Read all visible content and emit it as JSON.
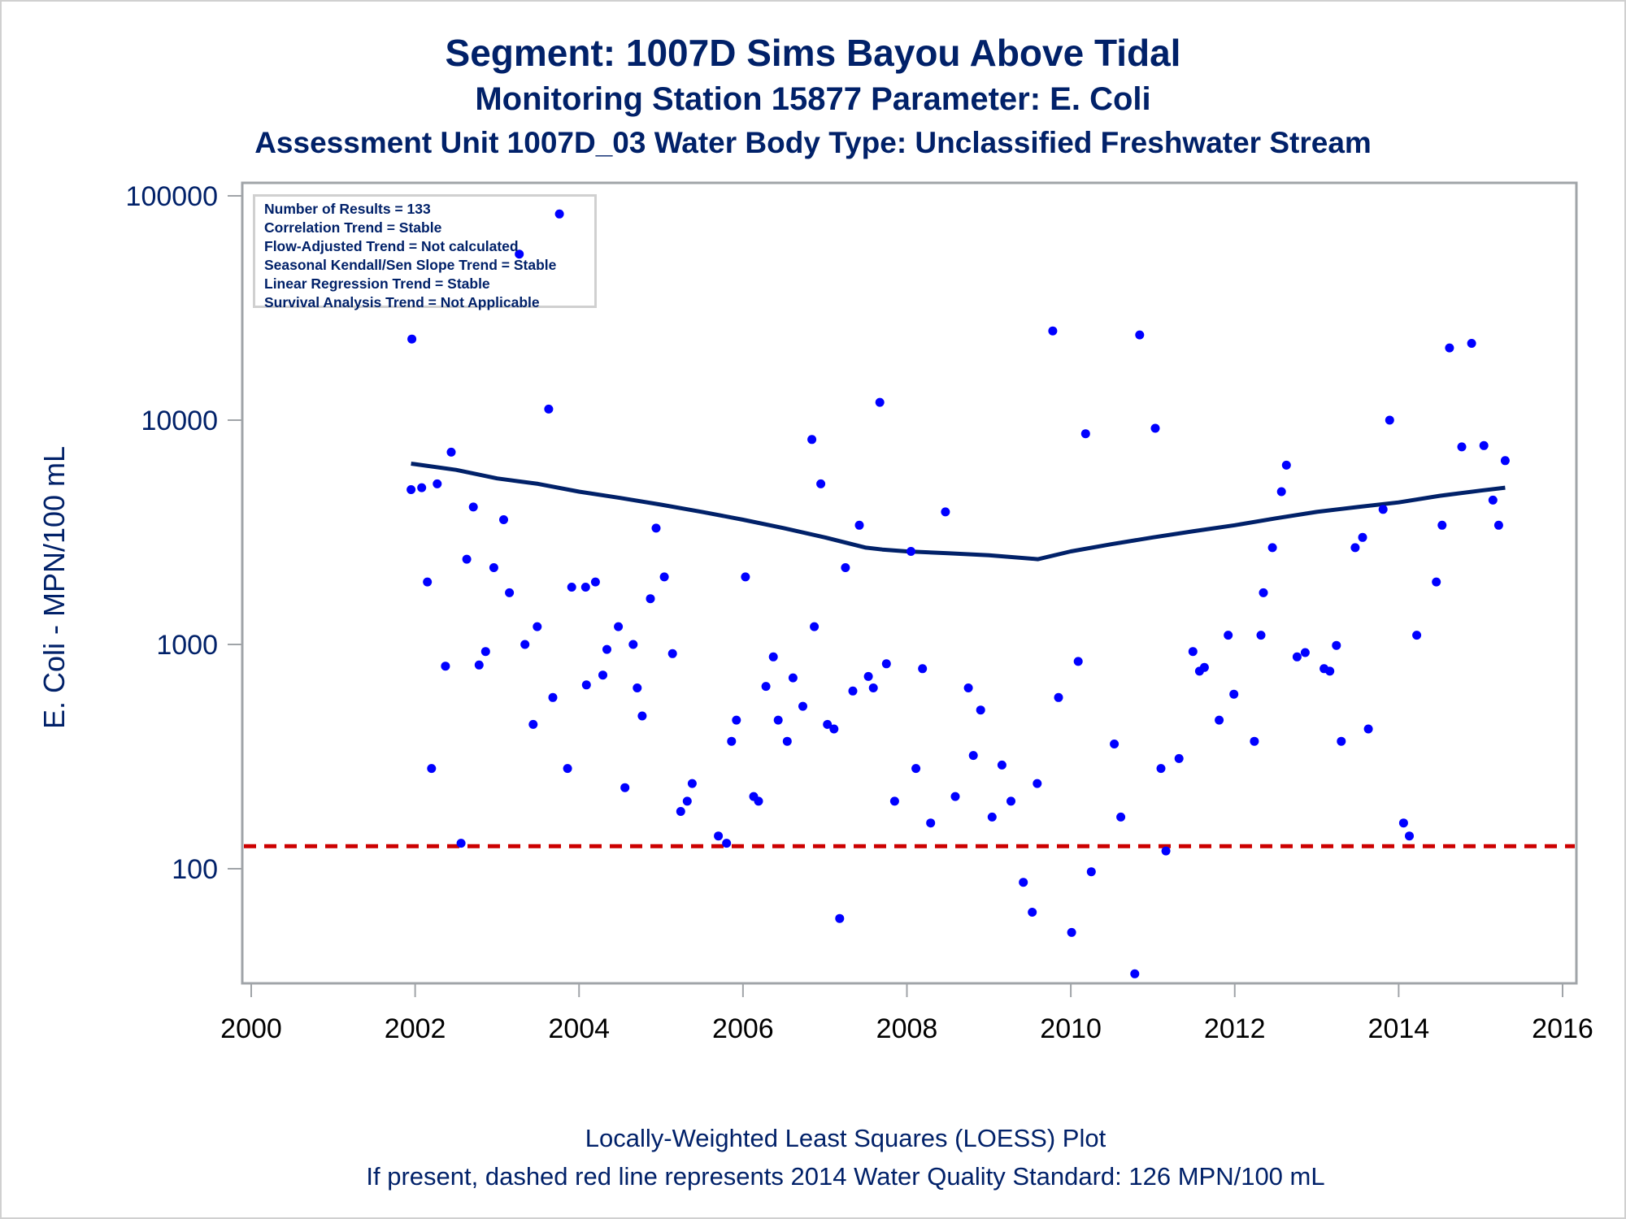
{
  "chart_data": {
    "type": "scatter",
    "title": "Segment: 1007D  Sims Bayou Above Tidal",
    "subtitle": "Monitoring Station 15877 Parameter: E. Coli",
    "subtitle2": "Assessment Unit 1007D_03   Water Body Type: Unclassified Freshwater Stream",
    "xlabel": "",
    "ylabel": "E. Coli - MPN/100 mL",
    "xlim": [
      2000,
      2016
    ],
    "ylim": [
      30,
      100000
    ],
    "yscale": "log",
    "x_ticks": [
      2000,
      2002,
      2004,
      2006,
      2008,
      2010,
      2012,
      2014,
      2016
    ],
    "x_tick_labels": [
      "2000",
      "2002",
      "2004",
      "2006",
      "2008",
      "2010",
      "2012",
      "2014",
      "2016"
    ],
    "y_ticks": [
      100,
      1000,
      10000,
      100000
    ],
    "y_tick_labels": [
      "100",
      "1000",
      "10000",
      "100000"
    ],
    "grid": false,
    "legend_placement": "top-left",
    "legend_lines": [
      "Number of Results = 133",
      "Correlation Trend = Stable",
      "Flow-Adjusted Trend = Not calculated",
      "Seasonal Kendall/Sen Slope Trend = Stable",
      "Linear Regression Trend = Stable",
      "Survival Analysis Trend = Not Applicable"
    ],
    "footnotes": [
      "Locally-Weighted Least Squares (LOESS) Plot",
      "If present, dashed red line represents 2014 Water Quality Standard: 126 MPN/100 mL"
    ],
    "standard_line": {
      "value": 126,
      "color": "#cc0000",
      "style": "dashed"
    },
    "colors": {
      "points": "#0000ff",
      "loess": "#012169",
      "text": "#012169",
      "frame": "#a0a4a8"
    },
    "series": [
      {
        "name": "E. Coli samples",
        "type": "scatter",
        "points": [
          [
            2001.95,
            4900
          ],
          [
            2001.96,
            23000
          ],
          [
            2002.08,
            5000
          ],
          [
            2002.15,
            1900
          ],
          [
            2002.2,
            280
          ],
          [
            2002.27,
            5200
          ],
          [
            2002.37,
            800
          ],
          [
            2002.44,
            7200
          ],
          [
            2002.56,
            130
          ],
          [
            2002.63,
            2400
          ],
          [
            2002.71,
            4100
          ],
          [
            2002.78,
            810
          ],
          [
            2002.86,
            930
          ],
          [
            2002.96,
            2200
          ],
          [
            2003.08,
            3600
          ],
          [
            2003.15,
            1700
          ],
          [
            2003.27,
            55000
          ],
          [
            2003.34,
            1000
          ],
          [
            2003.44,
            440
          ],
          [
            2003.49,
            1200
          ],
          [
            2003.63,
            11200
          ],
          [
            2003.68,
            580
          ],
          [
            2003.76,
            83000
          ],
          [
            2003.86,
            280
          ],
          [
            2003.91,
            1800
          ],
          [
            2004.08,
            1800
          ],
          [
            2004.09,
            660
          ],
          [
            2004.2,
            1900
          ],
          [
            2004.29,
            730
          ],
          [
            2004.34,
            950
          ],
          [
            2004.48,
            1200
          ],
          [
            2004.56,
            230
          ],
          [
            2004.66,
            1000
          ],
          [
            2004.71,
            640
          ],
          [
            2004.77,
            480
          ],
          [
            2004.87,
            1600
          ],
          [
            2004.94,
            3300
          ],
          [
            2005.04,
            2000
          ],
          [
            2005.14,
            910
          ],
          [
            2005.24,
            180
          ],
          [
            2005.32,
            200
          ],
          [
            2005.38,
            240
          ],
          [
            2005.7,
            140
          ],
          [
            2005.8,
            130
          ],
          [
            2005.86,
            370
          ],
          [
            2005.92,
            460
          ],
          [
            2006.03,
            2000
          ],
          [
            2006.13,
            210
          ],
          [
            2006.19,
            200
          ],
          [
            2006.28,
            650
          ],
          [
            2006.37,
            880
          ],
          [
            2006.43,
            460
          ],
          [
            2006.54,
            370
          ],
          [
            2006.61,
            710
          ],
          [
            2006.73,
            530
          ],
          [
            2006.84,
            8200
          ],
          [
            2006.87,
            1200
          ],
          [
            2006.95,
            5200
          ],
          [
            2007.03,
            440
          ],
          [
            2007.11,
            420
          ],
          [
            2007.18,
            60
          ],
          [
            2007.25,
            2200
          ],
          [
            2007.34,
            620
          ],
          [
            2007.42,
            3400
          ],
          [
            2007.53,
            720
          ],
          [
            2007.59,
            640
          ],
          [
            2007.67,
            12000
          ],
          [
            2007.75,
            820
          ],
          [
            2007.85,
            200
          ],
          [
            2008.05,
            2600
          ],
          [
            2008.11,
            280
          ],
          [
            2008.19,
            780
          ],
          [
            2008.29,
            160
          ],
          [
            2008.47,
            3900
          ],
          [
            2008.59,
            210
          ],
          [
            2008.75,
            640
          ],
          [
            2008.81,
            320
          ],
          [
            2008.9,
            510
          ],
          [
            2009.04,
            170
          ],
          [
            2009.16,
            290
          ],
          [
            2009.27,
            200
          ],
          [
            2009.42,
            87
          ],
          [
            2009.53,
            64
          ],
          [
            2009.59,
            240
          ],
          [
            2009.78,
            25000
          ],
          [
            2009.85,
            580
          ],
          [
            2010.01,
            52
          ],
          [
            2010.09,
            840
          ],
          [
            2010.18,
            8700
          ],
          [
            2010.25,
            97
          ],
          [
            2010.53,
            360
          ],
          [
            2010.61,
            170
          ],
          [
            2010.78,
            34
          ],
          [
            2010.84,
            24000
          ],
          [
            2011.03,
            9200
          ],
          [
            2011.1,
            280
          ],
          [
            2011.16,
            120
          ],
          [
            2011.32,
            310
          ],
          [
            2011.49,
            930
          ],
          [
            2011.57,
            760
          ],
          [
            2011.63,
            790
          ],
          [
            2011.81,
            460
          ],
          [
            2011.92,
            1100
          ],
          [
            2011.99,
            600
          ],
          [
            2012.24,
            370
          ],
          [
            2012.32,
            1100
          ],
          [
            2012.35,
            1700
          ],
          [
            2012.46,
            2700
          ],
          [
            2012.57,
            4800
          ],
          [
            2012.63,
            6300
          ],
          [
            2012.76,
            880
          ],
          [
            2012.86,
            920
          ],
          [
            2013.09,
            780
          ],
          [
            2013.16,
            760
          ],
          [
            2013.24,
            990
          ],
          [
            2013.3,
            370
          ],
          [
            2013.47,
            2700
          ],
          [
            2013.56,
            3000
          ],
          [
            2013.63,
            420
          ],
          [
            2013.81,
            4000
          ],
          [
            2013.89,
            10000
          ],
          [
            2014.06,
            160
          ],
          [
            2014.13,
            140
          ],
          [
            2014.22,
            1100
          ],
          [
            2014.46,
            1900
          ],
          [
            2014.53,
            3400
          ],
          [
            2014.62,
            21000
          ],
          [
            2014.77,
            7600
          ],
          [
            2014.89,
            22000
          ],
          [
            2015.04,
            7700
          ],
          [
            2015.15,
            4400
          ],
          [
            2015.22,
            3400
          ],
          [
            2015.3,
            6600
          ]
        ]
      },
      {
        "name": "LOESS fit",
        "type": "line",
        "points": [
          [
            2001.95,
            6400
          ],
          [
            2002.5,
            6000
          ],
          [
            2003,
            5500
          ],
          [
            2003.5,
            5200
          ],
          [
            2004,
            4800
          ],
          [
            2004.5,
            4500
          ],
          [
            2005,
            4200
          ],
          [
            2005.5,
            3900
          ],
          [
            2006,
            3600
          ],
          [
            2006.5,
            3300
          ],
          [
            2007,
            3000
          ],
          [
            2007.5,
            2700
          ],
          [
            2007.7,
            2650
          ],
          [
            2008,
            2600
          ],
          [
            2008.5,
            2550
          ],
          [
            2009,
            2500
          ],
          [
            2009.6,
            2400
          ],
          [
            2010,
            2600
          ],
          [
            2010.5,
            2800
          ],
          [
            2011,
            3000
          ],
          [
            2011.5,
            3200
          ],
          [
            2012,
            3400
          ],
          [
            2012.5,
            3650
          ],
          [
            2013,
            3900
          ],
          [
            2013.5,
            4100
          ],
          [
            2014,
            4300
          ],
          [
            2014.5,
            4600
          ],
          [
            2015,
            4850
          ],
          [
            2015.3,
            5000
          ]
        ]
      }
    ]
  }
}
